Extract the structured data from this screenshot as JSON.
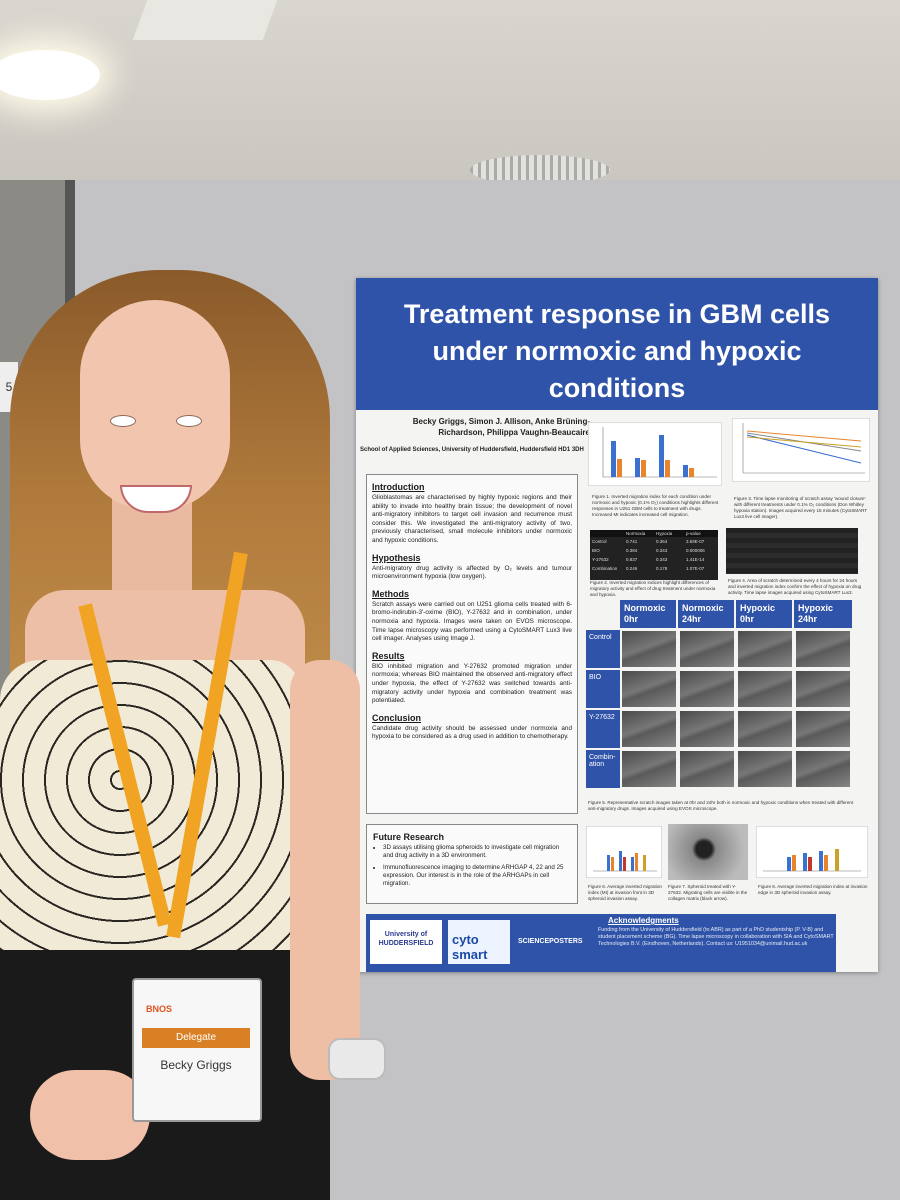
{
  "poster": {
    "title": "Treatment response in GBM cells under normoxic and hypoxic conditions",
    "authors": "Becky Griggs, Simon J. Allison, Anke Brüning-Richardson, Philippa Vaughn-Beaucaire",
    "affiliation": "School of Applied Sciences, University of Huddersfield, Huddersfield HD1 3DH",
    "sections": {
      "introduction": {
        "title": "Introduction",
        "body": "Glioblastomas are characterised by highly hypoxic regions and their ability to invade into healthy brain tissue; the development of novel anti-migratory inhibitors to target cell invasion and recurrence must consider this. We investigated the anti-migratory activity of two, previously characterised, small molecule inhibitors under normoxic and hypoxic conditions."
      },
      "hypothesis": {
        "title": "Hypothesis",
        "body": "Anti-migratory drug activity is affected by O₂ levels and tumour microenvironment hypoxia (low oxygen)."
      },
      "methods": {
        "title": "Methods",
        "body": "Scratch assays were carried out on U251 glioma cells treated with 6-bromo-indirubin-3'-oxime (BIO), Y-27632 and in combination, under normoxia and hypoxia. Images were taken on EVOS microscope. Time lapse microscopy was performed using a CytoSMART Lux3 live cell imager. Analyses using Image J."
      },
      "results": {
        "title": "Results",
        "body": "BIO inhibited migration and Y-27632 promoted migration under normoxia; whereas BIO maintained the observed anti-migratory effect under hypoxia, the effect of Y-27632 was switched towards anti-migratory activity under hypoxia and combination treatment was potentiated."
      },
      "conclusion": {
        "title": "Conclusion",
        "body": "Candidate drug activity should be assessed under normoxia and hypoxia to be considered as a drug used in addition to chemotherapy."
      },
      "future": {
        "title": "Future Research",
        "items": [
          "3D assays utilising glioma spheroids to investigate cell migration and drug activity in a 3D environment.",
          "Immunofluorescence imaging to determine ARHGAP 4, 22 and 25 expression. Our interest is in the role of the ARHGAPs in cell migration."
        ]
      }
    },
    "figures": {
      "fig1_caption": "Figure 1. Inverted migration index for each condition under normoxic and hypoxic (0.1% O₂) conditions highlights different responses in U251 GBM cells to treatment with drugs. Increased MI indicates increased cell migration.",
      "fig2_caption": "Figure 2. Inverted migration indices highlight differences of migratory activity and effect of drug treatment under normoxia and hypoxia.",
      "fig3_caption": "Figure 3. Time lapse monitoring of scratch assay 'wound closure' with different treatments under 0.1% O₂ conditions (Don Whitley hypoxia station). Images acquired every 15 minutes (CytoSMART Lux3 live cell imager).",
      "fig4_caption": "Figure 4. Area of scratch determined every 4 hours for 24 hours and inverted migration index confirm the effect of hypoxia on drug activity. Time lapse images acquired using CytoSMART Lux3.",
      "fig5_caption": "Figure 5. Representative scratch images taken at 0hr and 24hr both in normoxic and hypoxic conditions when treated with different anti-migratory drugs. Images acquired using EVOS microscope.",
      "fig6_caption": "Figure 6. Average inverted migration index (MI) at invasion front in 3D spheroid invasion assay.",
      "fig7_caption": "Figure 7. Spheroid treated with Y-27632. Migrating cells are visible in the collagen matrix (black arrow).",
      "fig8_caption": "Figure 8. Average inverted migration index at invasion edge in 3D spheroid invasion assay."
    },
    "table": {
      "headers": [
        "",
        "Normoxia",
        "Hypoxia",
        "p-value"
      ],
      "rows": [
        [
          "Control",
          "0.741",
          "0.364",
          "3.69E-07"
        ],
        [
          "BIO",
          "0.384",
          "0.343",
          "0.000006"
        ],
        [
          "Y-27632",
          "0.837",
          "0.343",
          "1.41E-14"
        ],
        [
          "Combination",
          "0.246",
          "0.178",
          "1.07E-07"
        ]
      ]
    },
    "image_grid": {
      "columns": [
        "Normoxic 0hr",
        "Normoxic 24hr",
        "Hypoxic 0hr",
        "Hypoxic 24hr"
      ],
      "rows": [
        "Control",
        "BIO",
        "Y-27632",
        "Combin-ation"
      ]
    },
    "acknowledgments": {
      "title": "Acknowledgments",
      "body": "Funding from the University of Huddersfield (to ABR) as part of a PhD studentship (P. V-B) and student placement scheme (BG). Time lapse microscopy in collaboration with SIA and CytoSMART Technologies B.V. (Eindhoven, Netherlands). Contact us: U1951034@unimail.hud.ac.uk"
    },
    "logos": {
      "university": "University of HUDDERSFIELD",
      "cyto": "cyto smart",
      "science": "SCIENCEPOSTERS"
    }
  },
  "badge": {
    "org": "BNOS",
    "role": "Delegate",
    "name": "Becky Griggs"
  },
  "sign": "5",
  "colors": {
    "poster_blue": "#2f53a8",
    "lanyard": "#f1a323",
    "badge_strip": "#d98024"
  }
}
